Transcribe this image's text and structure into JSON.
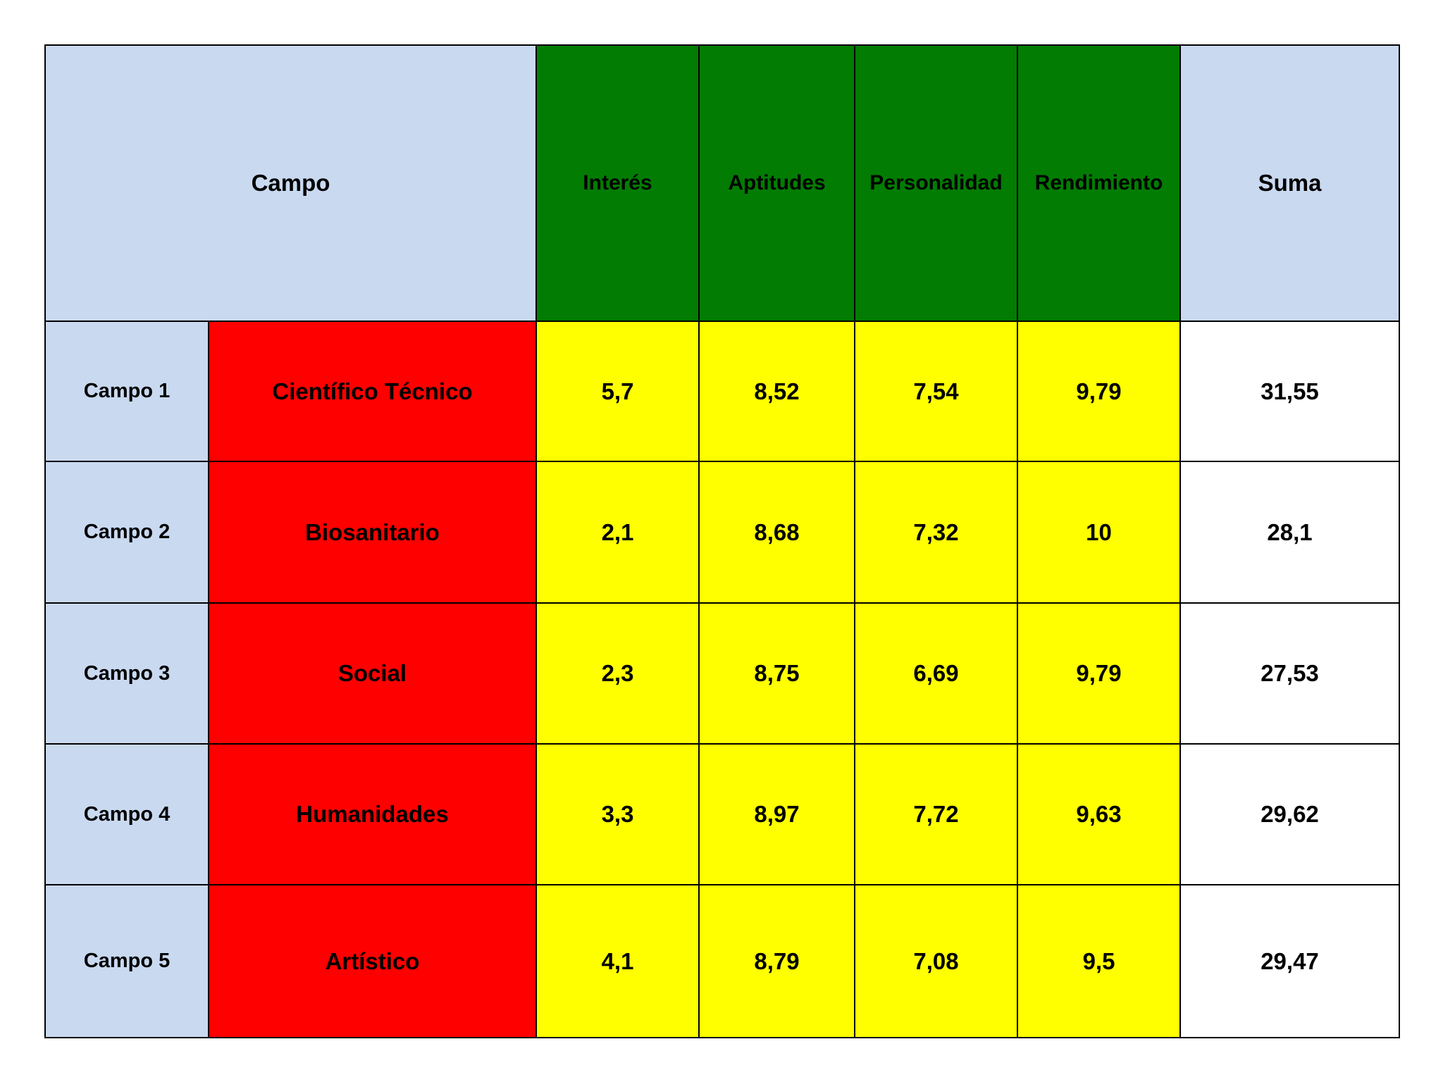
{
  "table": {
    "header": [
      "Campo",
      "Interés",
      "Aptitudes",
      "Personalidad",
      "Rendimiento",
      "Suma"
    ],
    "rows": [
      [
        "Campo 1",
        "Científico Técnico",
        "5,7",
        "8,52",
        "7,54",
        "9,79",
        "31,55"
      ],
      [
        "Campo 2",
        "Biosanitario",
        "2,1",
        "8,68",
        "7,32",
        "10",
        "28,1"
      ],
      [
        "Campo 3",
        "Social",
        "2,3",
        "8,75",
        "6,69",
        "9,79",
        "27,53"
      ],
      [
        "Campo 4",
        "Humanidades",
        "3,3",
        "8,97",
        "7,72",
        "9,63",
        "29,62"
      ],
      [
        "Campo 5",
        "Artístico",
        "4,1",
        "8,79",
        "7,08",
        "9,5",
        "29,47"
      ]
    ]
  }
}
